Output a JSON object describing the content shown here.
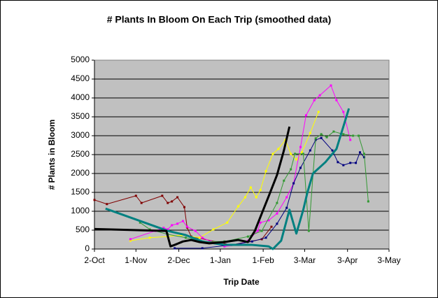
{
  "chart_data": {
    "type": "line",
    "title": "# Plants In Bloom On Each Trip (smoothed data)",
    "x_label": "Trip Date",
    "y_label": "# Plants in Bloom",
    "xlim": [
      0,
      213
    ],
    "xticks": [
      {
        "value": 0,
        "label": "2-Oct"
      },
      {
        "value": 30,
        "label": "1-Nov"
      },
      {
        "value": 61,
        "label": "2-Dec"
      },
      {
        "value": 91,
        "label": "1-Jan"
      },
      {
        "value": 122,
        "label": "1-Feb"
      },
      {
        "value": 152,
        "label": "3-Mar"
      },
      {
        "value": 183,
        "label": "3-Apr"
      },
      {
        "value": 213,
        "label": "3-May"
      }
    ],
    "ylim": [
      0,
      5000
    ],
    "yticks": [
      0,
      500,
      1000,
      1500,
      2000,
      2500,
      3000,
      3500,
      4000,
      4500,
      5000
    ],
    "grid": true,
    "series": [
      {
        "color": "#800000",
        "width": 1,
        "x": [
          0,
          9,
          30,
          34,
          49,
          53,
          56,
          60,
          65,
          67,
          70,
          99,
          121,
          128
        ],
        "values": [
          1300,
          1190,
          1410,
          1220,
          1410,
          1220,
          1260,
          1370,
          1110,
          570,
          330,
          110,
          260,
          590
        ]
      },
      {
        "color": "#ffff00",
        "width": 1,
        "x": [
          26,
          40,
          53,
          63,
          76,
          86,
          96,
          104,
          109,
          113,
          117,
          120,
          124,
          129,
          133,
          138,
          142,
          146,
          150,
          156,
          162
        ],
        "values": [
          220,
          300,
          330,
          370,
          300,
          520,
          700,
          1130,
          1370,
          1630,
          1370,
          1560,
          2060,
          2520,
          2650,
          2890,
          2520,
          2370,
          2560,
          3070,
          3630
        ]
      },
      {
        "color": "#ff00ff",
        "width": 1,
        "x": [
          26,
          44,
          50,
          53,
          56,
          60,
          64,
          67,
          73,
          78,
          84,
          94,
          104,
          111,
          118,
          120,
          126,
          132,
          139,
          144,
          149,
          153,
          159,
          163,
          171,
          175,
          180,
          185
        ],
        "values": [
          260,
          480,
          560,
          520,
          630,
          670,
          740,
          590,
          480,
          300,
          200,
          70,
          110,
          220,
          480,
          700,
          760,
          940,
          1370,
          1740,
          2700,
          3540,
          3940,
          4070,
          4330,
          3940,
          3630,
          2890
        ]
      },
      {
        "color": "#000080",
        "width": 1,
        "x": [
          58,
          78,
          99,
          114,
          124,
          132,
          139,
          144,
          149,
          156,
          160,
          164,
          172,
          176,
          180,
          185,
          189,
          192,
          195
        ],
        "values": [
          20,
          20,
          110,
          200,
          300,
          670,
          1090,
          1740,
          2150,
          2610,
          2890,
          2940,
          2610,
          2300,
          2220,
          2280,
          2280,
          2560,
          2430
        ]
      },
      {
        "color": "#339933",
        "width": 1,
        "x": [
          33,
          40,
          53,
          66,
          78,
          94,
          111,
          121,
          132,
          137,
          142,
          145,
          151,
          155,
          160,
          164,
          168,
          173,
          180,
          187,
          191,
          195,
          198
        ],
        "values": [
          700,
          520,
          390,
          300,
          200,
          200,
          330,
          480,
          1220,
          1810,
          2110,
          2520,
          2520,
          480,
          2930,
          3040,
          2960,
          3110,
          3040,
          3000,
          3000,
          2520,
          1260
        ]
      },
      {
        "color": "#008080",
        "width": 3,
        "x": [
          8,
          53,
          66,
          78,
          94,
          114,
          126,
          129,
          135,
          141,
          146,
          151,
          154,
          158,
          167,
          175,
          184
        ],
        "values": [
          1070,
          480,
          370,
          200,
          110,
          110,
          70,
          0,
          220,
          1040,
          410,
          1040,
          1500,
          2000,
          2300,
          2650,
          3720
        ]
      },
      {
        "color": "#000000",
        "width": 3,
        "x": [
          0,
          52,
          55,
          58,
          64,
          70,
          76,
          83,
          94,
          104,
          111,
          116,
          121,
          126,
          132,
          137,
          141
        ],
        "values": [
          530,
          480,
          70,
          110,
          200,
          240,
          185,
          150,
          185,
          240,
          185,
          480,
          940,
          1400,
          1960,
          2610,
          3240
        ]
      }
    ]
  }
}
